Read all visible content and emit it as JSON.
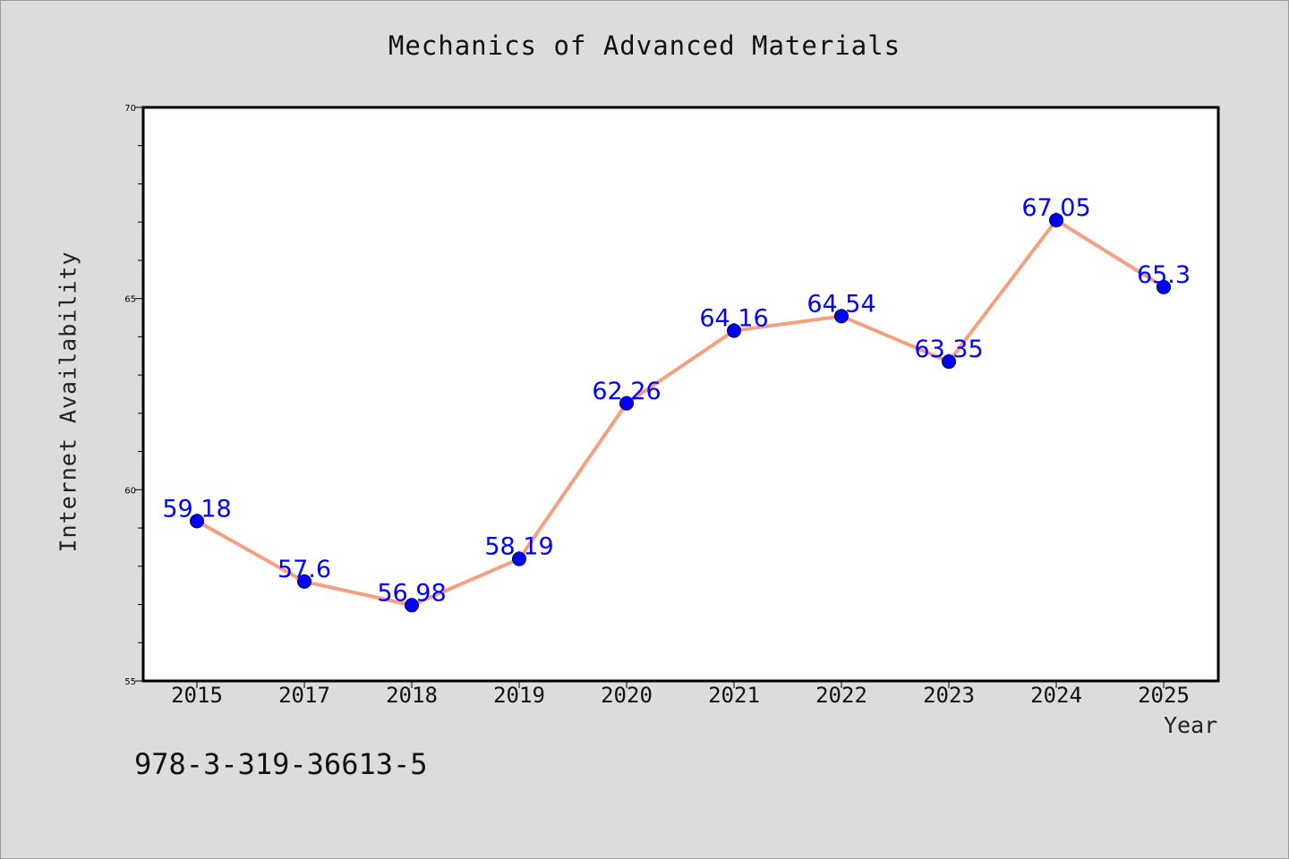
{
  "chart_data": {
    "type": "line",
    "title": "Mechanics of Advanced Materials",
    "xlabel": "Year",
    "ylabel": "Internet Availability",
    "categories": [
      "2015",
      "2017",
      "2018",
      "2019",
      "2020",
      "2021",
      "2022",
      "2023",
      "2024",
      "2025"
    ],
    "values": [
      59.18,
      57.6,
      56.98,
      58.19,
      62.26,
      64.16,
      64.54,
      63.35,
      67.05,
      65.3
    ],
    "data_labels": [
      "59.18",
      "57.6",
      "56.98",
      "58.19",
      "62.26",
      "64.16",
      "64.54",
      "63.35",
      "67.05",
      "65.3"
    ],
    "ylim": [
      55,
      70
    ],
    "yticks": [
      "55",
      "60",
      "65",
      "70"
    ],
    "grid": false,
    "legend": "none",
    "line_color": "#f4a07e",
    "marker_color": "#0000ff",
    "label_color": "#0000ff"
  },
  "footnote": "978-3-319-36613-5"
}
